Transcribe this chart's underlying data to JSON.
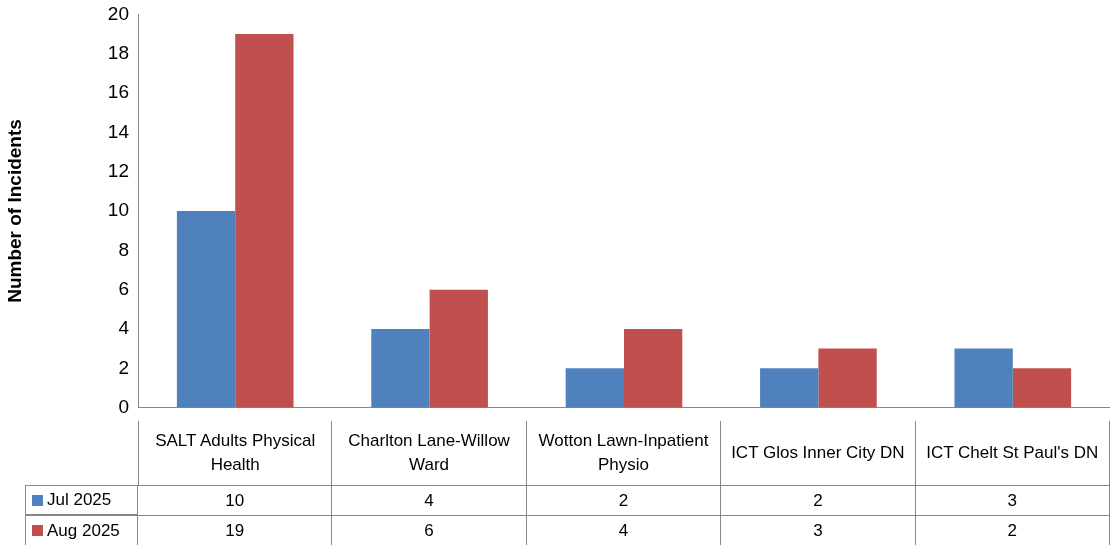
{
  "chart_data": {
    "type": "bar",
    "ylabel": "Number of Incidents",
    "categories": [
      "SALT Adults Physical Health",
      "Charlton Lane-Willow Ward",
      "Wotton Lawn-Inpatient Physio",
      "ICT Glos Inner City DN",
      "ICT Chelt St Paul's DN"
    ],
    "series": [
      {
        "name": "Jul 2025",
        "color": "#4f81bd",
        "values": [
          10,
          4,
          2,
          2,
          3
        ]
      },
      {
        "name": "Aug 2025",
        "color": "#c0504d",
        "values": [
          19,
          6,
          4,
          3,
          2
        ]
      }
    ],
    "ylim": [
      0,
      20
    ],
    "yticks": [
      0,
      2,
      4,
      6,
      8,
      10,
      12,
      14,
      16,
      18,
      20
    ],
    "data_labels": true,
    "legend": "bottom"
  }
}
